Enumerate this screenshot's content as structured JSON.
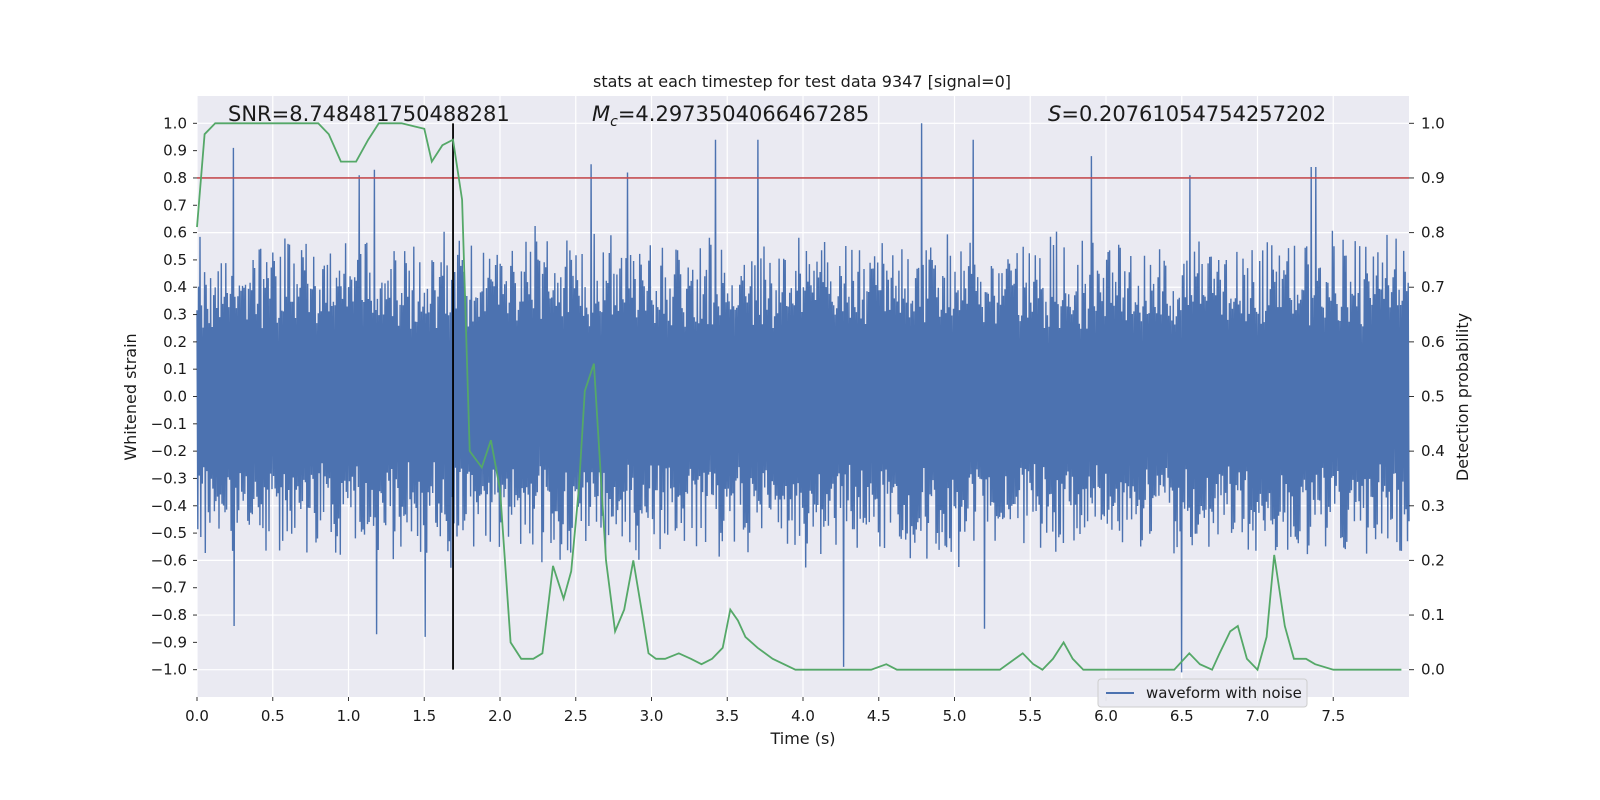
{
  "chart_data": {
    "type": "line",
    "title": "stats at each timestep for test data 9347 [signal=0]",
    "xlabel": "Time (s)",
    "ylabel": "Whitened strain",
    "ylabel_right": "Detection probability",
    "xlim": [
      0.0,
      8.0
    ],
    "ylim": [
      -1.1,
      1.1
    ],
    "ylim_right": [
      -0.05,
      1.05
    ],
    "x_ticks": [
      "0.0",
      "0.5",
      "1.0",
      "1.5",
      "2.0",
      "2.5",
      "3.0",
      "3.5",
      "4.0",
      "4.5",
      "5.0",
      "5.5",
      "6.0",
      "6.5",
      "7.0",
      "7.5"
    ],
    "y_ticks": [
      "1.0",
      "0.9",
      "0.8",
      "0.7",
      "0.6",
      "0.5",
      "0.4",
      "0.3",
      "0.2",
      "0.1",
      "0.0",
      "−0.1",
      "−0.2",
      "−0.3",
      "−0.4",
      "−0.5",
      "−0.6",
      "−0.7",
      "−0.8",
      "−0.9",
      "−1.0"
    ],
    "y_ticks_right": [
      "1.0",
      "0.9",
      "0.8",
      "0.7",
      "0.6",
      "0.5",
      "0.4",
      "0.3",
      "0.2",
      "0.1",
      "0.0"
    ],
    "grid": true,
    "legend": {
      "placement": "lower-right",
      "entries": [
        "waveform with noise"
      ]
    },
    "annotations": {
      "snr_label": "SNR=8.748481750488281",
      "mc_symbol": "M",
      "mc_subscript": "c",
      "mc_value": "=4.2973504066467285",
      "s_symbol": "S",
      "s_value": "=0.20761054754257202"
    },
    "threshold_right": 0.9,
    "marker_time": 1.69,
    "series": [
      {
        "name": "waveform with noise",
        "axis": "left",
        "color": "#4c72b0",
        "x_range": [
          0.0,
          8.0
        ],
        "n_samples": 1600,
        "typical_abs_amplitude": 0.3,
        "peaks": [
          {
            "x": 0.24,
            "y": 0.91
          },
          {
            "x": 0.25,
            "y": -0.84
          },
          {
            "x": 1.07,
            "y": 0.81
          },
          {
            "x": 1.17,
            "y": 0.83
          },
          {
            "x": 1.19,
            "y": -0.87
          },
          {
            "x": 1.51,
            "y": -0.88
          },
          {
            "x": 2.6,
            "y": 0.85
          },
          {
            "x": 2.84,
            "y": 0.82
          },
          {
            "x": 3.42,
            "y": 0.94
          },
          {
            "x": 3.7,
            "y": 0.94
          },
          {
            "x": 4.27,
            "y": -0.99
          },
          {
            "x": 4.78,
            "y": 1.0
          },
          {
            "x": 5.12,
            "y": 0.94
          },
          {
            "x": 5.2,
            "y": -0.85
          },
          {
            "x": 5.9,
            "y": 0.88
          },
          {
            "x": 6.5,
            "y": -1.01
          },
          {
            "x": 6.55,
            "y": 0.81
          },
          {
            "x": 7.35,
            "y": 0.84
          },
          {
            "x": 7.38,
            "y": 0.84
          }
        ]
      },
      {
        "name": "",
        "axis": "right",
        "color": "#55a868",
        "x": [
          0.0,
          0.05,
          0.12,
          0.3,
          0.5,
          0.8,
          0.87,
          0.95,
          1.05,
          1.13,
          1.2,
          1.35,
          1.5,
          1.55,
          1.62,
          1.69,
          1.75,
          1.8,
          1.88,
          1.94,
          2.0,
          2.07,
          2.14,
          2.22,
          2.28,
          2.35,
          2.42,
          2.47,
          2.52,
          2.56,
          2.62,
          2.7,
          2.76,
          2.82,
          2.88,
          2.94,
          2.98,
          3.03,
          3.09,
          3.18,
          3.26,
          3.33,
          3.4,
          3.47,
          3.52,
          3.57,
          3.62,
          3.7,
          3.8,
          3.95,
          4.05,
          4.3,
          4.45,
          4.55,
          4.62,
          4.7,
          4.8,
          4.95,
          5.1,
          5.3,
          5.45,
          5.52,
          5.58,
          5.65,
          5.72,
          5.78,
          5.85,
          6.0,
          6.2,
          6.45,
          6.55,
          6.62,
          6.7,
          6.75,
          6.82,
          6.87,
          6.93,
          7.0,
          7.06,
          7.11,
          7.18,
          7.24,
          7.32,
          7.38,
          7.5,
          7.7,
          7.95
        ],
        "y": [
          0.81,
          0.98,
          1.0,
          1.0,
          1.0,
          1.0,
          0.98,
          0.93,
          0.93,
          0.97,
          1.0,
          1.0,
          0.99,
          0.93,
          0.96,
          0.97,
          0.86,
          0.4,
          0.37,
          0.42,
          0.33,
          0.05,
          0.02,
          0.02,
          0.03,
          0.19,
          0.13,
          0.18,
          0.33,
          0.51,
          0.56,
          0.2,
          0.07,
          0.11,
          0.2,
          0.1,
          0.03,
          0.02,
          0.02,
          0.03,
          0.02,
          0.01,
          0.02,
          0.04,
          0.11,
          0.09,
          0.06,
          0.04,
          0.02,
          0.0,
          0.0,
          0.0,
          0.0,
          0.01,
          0.0,
          0.0,
          0.0,
          0.0,
          0.0,
          0.0,
          0.03,
          0.01,
          0.0,
          0.02,
          0.05,
          0.02,
          0.0,
          0.0,
          0.0,
          0.0,
          0.03,
          0.01,
          0.0,
          0.03,
          0.07,
          0.08,
          0.02,
          0.0,
          0.06,
          0.21,
          0.08,
          0.02,
          0.02,
          0.01,
          0.0,
          0.0,
          0.0
        ]
      }
    ]
  }
}
